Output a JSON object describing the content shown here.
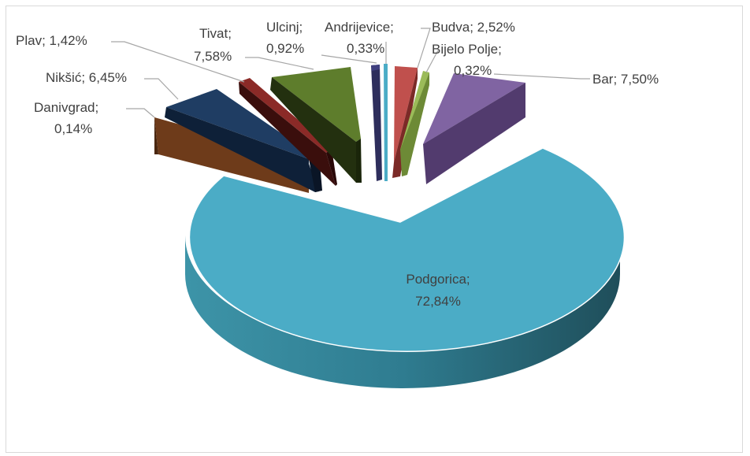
{
  "chart_data": {
    "type": "pie",
    "three_d": true,
    "exploded": true,
    "slices": [
      {
        "label": "Podgorica;",
        "value_text": "72,84%",
        "value": 72.84,
        "color": "#4BACC6"
      },
      {
        "label": "Bar; 7,50%",
        "value_text": "",
        "value": 7.5,
        "color": "#8064A2"
      },
      {
        "label": "Bijelo Polje;",
        "value_text": "0,32%",
        "value": 0.32,
        "color": "#9BBB59"
      },
      {
        "label": "Budva; 2,52%",
        "value_text": "",
        "value": 2.52,
        "color": "#C0504D"
      },
      {
        "label": "Andrijevice;",
        "value_text": "0,33%",
        "value": 0.33,
        "color": "#4BACC6"
      },
      {
        "label": "Ulcinj;",
        "value_text": "0,92%",
        "value": 0.92,
        "color": "#3F3F7F"
      },
      {
        "label": "Tivat;",
        "value_text": "7,58%",
        "value": 7.58,
        "color": "#5E7D2C"
      },
      {
        "label": "Plav; 1,42%",
        "value_text": "",
        "value": 1.42,
        "color": "#8B2A27"
      },
      {
        "label": "Nikšić; 6,45%",
        "value_text": "",
        "value": 6.45,
        "color": "#1F3D63"
      },
      {
        "label": "Danivgrad;",
        "value_text": "0,14%",
        "value": 0.14,
        "color": "#6E3B1A"
      }
    ]
  }
}
